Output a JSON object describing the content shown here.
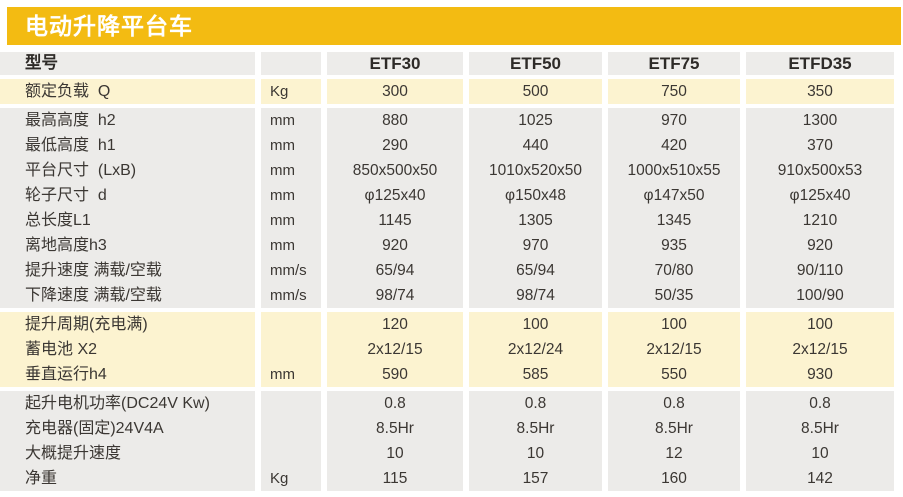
{
  "banner": {
    "title": "电动升降平台车"
  },
  "header": {
    "model_label": "型号",
    "columns": [
      "ETF30",
      "ETF50",
      "ETF75",
      "ETFD35"
    ]
  },
  "colors": {
    "banner": "#F3BB12",
    "cream": "#FCF3D0",
    "gray": "#ECEBE9",
    "header_gray": "#EDECEA",
    "text": "#3B3733"
  },
  "groups": [
    {
      "shade": "cream",
      "rows": [
        {
          "label": "额定负载  Q",
          "unit": "Kg",
          "values": [
            "300",
            "500",
            "750",
            "350"
          ]
        }
      ]
    },
    {
      "shade": "gray",
      "rows": [
        {
          "label": "最高高度  h2",
          "unit": "mm",
          "values": [
            "880",
            "1025",
            "970",
            "1300"
          ]
        },
        {
          "label": "最低高度  h1",
          "unit": "mm",
          "values": [
            "290",
            "440",
            "420",
            "370"
          ]
        },
        {
          "label": "平台尺寸  (LxB)",
          "unit": "mm",
          "values": [
            "850x500x50",
            "1010x520x50",
            "1000x510x55",
            "910x500x53"
          ]
        },
        {
          "label": "轮子尺寸  d",
          "unit": "mm",
          "values": [
            "φ125x40",
            "φ150x48",
            "φ147x50",
            "φ125x40"
          ]
        },
        {
          "label": "总长度L1",
          "unit": "mm",
          "values": [
            "1145",
            "1305",
            "1345",
            "1210"
          ]
        },
        {
          "label": "离地高度h3",
          "unit": "mm",
          "values": [
            "920",
            "970",
            "935",
            "920"
          ]
        },
        {
          "label": "提升速度 满载/空载",
          "unit": "mm/s",
          "values": [
            "65/94",
            "65/94",
            "70/80",
            "90/110"
          ]
        },
        {
          "label": "下降速度 满载/空载",
          "unit": "mm/s",
          "values": [
            "98/74",
            "98/74",
            "50/35",
            "100/90"
          ]
        }
      ]
    },
    {
      "shade": "cream",
      "rows": [
        {
          "label": "提升周期(充电满)",
          "unit": "",
          "values": [
            "120",
            "100",
            "100",
            "100"
          ]
        },
        {
          "label": "蓄电池 X2",
          "unit": "",
          "values": [
            "2x12/15",
            "2x12/24",
            "2x12/15",
            "2x12/15"
          ]
        },
        {
          "label": "垂直运行h4",
          "unit": "mm",
          "values": [
            "590",
            "585",
            "550",
            "930"
          ]
        }
      ]
    },
    {
      "shade": "gray",
      "rows": [
        {
          "label": "起升电机功率(DC24V Kw)",
          "unit": "",
          "values": [
            "0.8",
            "0.8",
            "0.8",
            "0.8"
          ]
        },
        {
          "label": "充电器(固定)24V4A",
          "unit": "",
          "values": [
            "8.5Hr",
            "8.5Hr",
            "8.5Hr",
            "8.5Hr"
          ]
        },
        {
          "label": "大概提升速度",
          "unit": "",
          "values": [
            "10",
            "10",
            "12",
            "10"
          ]
        },
        {
          "label": "净重",
          "unit": "Kg",
          "values": [
            "115",
            "157",
            "160",
            "142"
          ]
        }
      ]
    }
  ]
}
